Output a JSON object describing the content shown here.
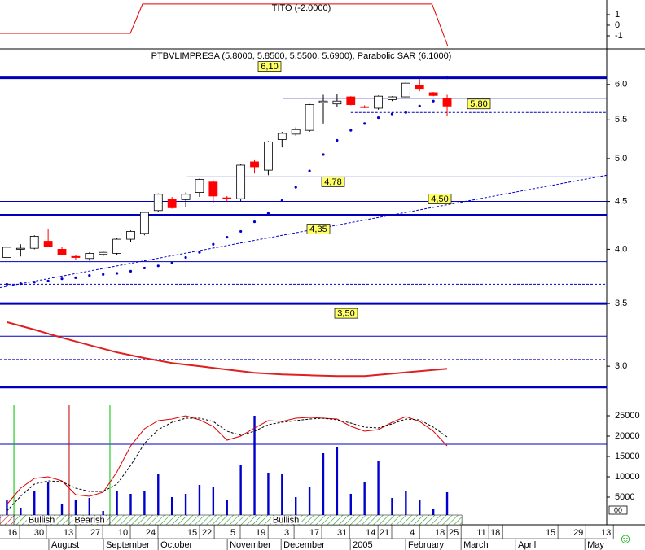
{
  "chart_data": [
    {
      "type": "line",
      "title": "TITO (-2.0000)",
      "x": [
        -0.5,
        8.97,
        9.86,
        30.9,
        32.06
      ],
      "series": [
        {
          "color": "#e00000",
          "values": [
            -0.77,
            -0.77,
            2.0,
            2.0,
            -2.0
          ]
        }
      ],
      "xlim": [
        -0.5,
        43.6
      ],
      "ylim": [
        -2.23,
        2.38
      ],
      "yticks": [
        1,
        0,
        -1
      ]
    },
    {
      "type": "candlestick",
      "title": "PTBVLIMPRESA (5.8000, 5.8500, 5.5500, 5.6900), Parabolic SAR (6.1000)",
      "x": [
        0,
        1,
        2,
        3,
        4,
        5,
        6,
        7,
        8,
        9,
        10,
        11,
        12,
        13,
        14,
        15,
        16,
        17,
        18,
        19,
        20,
        21,
        22,
        23,
        24,
        25,
        26,
        27,
        28,
        29,
        30,
        31,
        32
      ],
      "open": [
        3.92,
        4.0,
        4.01,
        4.08,
        4.0,
        3.93,
        3.91,
        3.95,
        3.96,
        4.1,
        4.16,
        4.4,
        4.52,
        4.52,
        4.6,
        4.72,
        4.54,
        4.53,
        4.96,
        4.86,
        5.24,
        5.31,
        5.36,
        5.74,
        5.72,
        5.82,
        5.68,
        5.66,
        5.78,
        5.82,
        5.99,
        5.88,
        5.8
      ],
      "high": [
        4.03,
        4.05,
        4.14,
        4.2,
        4.02,
        3.94,
        3.97,
        3.98,
        4.11,
        4.19,
        4.39,
        4.59,
        4.55,
        4.6,
        4.76,
        4.74,
        4.56,
        4.93,
        4.98,
        5.22,
        5.34,
        5.4,
        5.72,
        5.85,
        5.86,
        5.83,
        5.7,
        5.84,
        5.83,
        6.04,
        6.08,
        5.89,
        5.85
      ],
      "low": [
        3.88,
        3.93,
        4.0,
        4.02,
        3.94,
        3.9,
        3.89,
        3.93,
        3.94,
        4.07,
        4.14,
        4.38,
        4.42,
        4.44,
        4.55,
        4.48,
        4.5,
        4.5,
        4.82,
        4.8,
        5.14,
        5.29,
        5.34,
        5.45,
        5.68,
        5.7,
        5.66,
        5.64,
        5.76,
        5.8,
        5.9,
        5.83,
        5.55
      ],
      "close": [
        4.02,
        4.01,
        4.13,
        4.03,
        3.95,
        3.92,
        3.96,
        3.97,
        4.1,
        4.18,
        4.38,
        4.58,
        4.43,
        4.58,
        4.75,
        4.56,
        4.53,
        4.92,
        4.9,
        5.21,
        5.32,
        5.37,
        5.71,
        5.76,
        5.76,
        5.71,
        5.67,
        5.83,
        5.82,
        6.02,
        5.93,
        5.84,
        5.69
      ],
      "color_up": "#ffffff",
      "color_down": "#ff0000",
      "sar": {
        "color": "#0000cc",
        "values": [
          3.67,
          3.676,
          3.69,
          3.7,
          3.72,
          3.73,
          3.75,
          3.76,
          3.77,
          3.79,
          3.82,
          3.84,
          3.87,
          3.92,
          3.97,
          4.05,
          4.12,
          4.18,
          4.28,
          4.37,
          4.51,
          4.66,
          4.85,
          5.05,
          5.23,
          5.36,
          5.45,
          5.53,
          5.58,
          5.6,
          5.69,
          5.76,
          6.1
        ]
      },
      "average": {
        "color": "#dd2020",
        "x": [
          0,
          2,
          4,
          6,
          8,
          10,
          12,
          14,
          16,
          18,
          20,
          22,
          24,
          26,
          28,
          30,
          32
        ],
        "values": [
          3.344,
          3.283,
          3.218,
          3.16,
          3.104,
          3.061,
          3.024,
          3.0,
          2.976,
          2.952,
          2.94,
          2.934,
          2.928,
          2.928,
          2.946,
          2.964,
          2.982
        ]
      },
      "trendline": {
        "color": "#0000cc",
        "x": [
          -0.5,
          43.6
        ],
        "values": [
          3.64,
          4.8
        ]
      },
      "levels": [
        {
          "value": 6.1,
          "label": "6,10",
          "style": "thick"
        },
        {
          "value": 5.8,
          "label": "5,80",
          "style": "thin",
          "start": 20.1
        },
        {
          "value": 5.6,
          "style": "dotted",
          "start": 25.0
        },
        {
          "value": 4.78,
          "label": "4,78",
          "style": "thin",
          "start": 13.1
        },
        {
          "value": 4.5,
          "label": "4,50",
          "style": "thin"
        },
        {
          "value": 4.35,
          "label": "4,35",
          "style": "thick"
        },
        {
          "value": 3.88,
          "style": "thin"
        },
        {
          "value": 3.67,
          "style": "dotted"
        },
        {
          "value": 3.5,
          "label": "3,50",
          "style": "thick"
        },
        {
          "value": 3.23,
          "style": "thin"
        },
        {
          "value": 3.05,
          "style": "dotted"
        },
        {
          "value": 2.85,
          "style": "thick"
        }
      ],
      "log_scale": true,
      "xlim": [
        -0.5,
        43.6
      ],
      "ylim": [
        2.77,
        6.55
      ],
      "yticks": [
        {
          "value": 6,
          "label": "6.0"
        },
        5.5,
        {
          "value": 5,
          "label": "5.0"
        },
        4.5,
        {
          "value": 4,
          "label": "4.0"
        },
        3.5,
        {
          "value": 3,
          "label": "3.0"
        }
      ]
    },
    {
      "type": "bar",
      "color": "#0000cc",
      "x": [
        0,
        1,
        2,
        3,
        4,
        5,
        6,
        7,
        8,
        9,
        10,
        11,
        12,
        13,
        14,
        15,
        16,
        17,
        18,
        19,
        20,
        21,
        22,
        23,
        24,
        25,
        26,
        27,
        28,
        29,
        30,
        31,
        32
      ],
      "values": [
        4400,
        2400,
        6400,
        8600,
        3200,
        4200,
        4800,
        1600,
        6400,
        5800,
        6400,
        10600,
        5000,
        5800,
        8000,
        7400,
        4200,
        12800,
        25000,
        11000,
        10600,
        5000,
        7600,
        15800,
        17200,
        5800,
        8800,
        13800,
        4800,
        6600,
        4400,
        2000,
        6200
      ],
      "series": [
        {
          "color": "#e00000",
          "style": "solid",
          "values": [
            3200,
            7200,
            9600,
            10000,
            9000,
            5600,
            5200,
            6200,
            11200,
            17600,
            21800,
            23800,
            24200,
            25000,
            24000,
            22400,
            19000,
            20000,
            22000,
            23800,
            23600,
            24400,
            24600,
            24400,
            24200,
            22400,
            21200,
            21600,
            23400,
            24800,
            23600,
            21200,
            17600
          ]
        },
        {
          "color": "#000000",
          "style": "dashed",
          "values": [
            1600,
            5200,
            8200,
            9000,
            8800,
            7200,
            6400,
            6400,
            8200,
            12800,
            18200,
            21600,
            23400,
            24400,
            24400,
            23600,
            21200,
            20200,
            21200,
            22800,
            23400,
            23800,
            24200,
            24400,
            24000,
            23200,
            22200,
            22000,
            23000,
            24200,
            24000,
            22200,
            19800
          ]
        }
      ],
      "hline": 18000,
      "signals": [
        {
          "x": 0.51,
          "color": "#00c000"
        },
        {
          "x": 4.53,
          "color": "#c00000"
        },
        {
          "x": 7.49,
          "color": "#00c000"
        }
      ],
      "band": [
        {
          "start": -0.5,
          "end": 0.51,
          "color": "red"
        },
        {
          "start": 0.51,
          "end": 4.53,
          "color": "green",
          "label": "Bullish"
        },
        {
          "start": 4.53,
          "end": 7.49,
          "color": "green",
          "label": "Bearish"
        },
        {
          "start": 7.49,
          "end": 33.07,
          "color": "green",
          "label": "Bullish"
        }
      ],
      "xlim": [
        -0.5,
        43.6
      ],
      "ylim": [
        0,
        29200
      ],
      "yticks": [
        25000,
        20000,
        15000,
        10000,
        5000
      ],
      "xticks": [
        {
          "value": 0.39,
          "label": "16"
        },
        {
          "value": 2.34,
          "label": "30"
        },
        {
          "value": 4.47,
          "label": "13"
        },
        {
          "value": 6.43,
          "label": "27"
        },
        {
          "value": 8.44,
          "label": "10"
        },
        {
          "value": 10.45,
          "label": "24"
        },
        {
          "value": 13.47,
          "label": "15"
        },
        {
          "value": 14.54,
          "label": "22"
        },
        {
          "value": 16.43,
          "label": "5"
        },
        {
          "value": 18.45,
          "label": "19"
        },
        {
          "value": 20.34,
          "label": "3"
        },
        {
          "value": 22.35,
          "label": "17"
        },
        {
          "value": 24.37,
          "label": "31"
        },
        {
          "value": 26.44,
          "label": "14"
        },
        {
          "value": 27.44,
          "label": "21"
        },
        {
          "value": 29.46,
          "label": "4"
        },
        {
          "value": 31.47,
          "label": "18"
        },
        {
          "value": 32.48,
          "label": "25"
        },
        {
          "value": 34.49,
          "label": "11"
        },
        {
          "value": 35.5,
          "label": "18"
        },
        {
          "value": 39.52,
          "label": "15"
        },
        {
          "value": 41.54,
          "label": "29"
        },
        {
          "value": 43.55,
          "label": "13"
        }
      ],
      "month_ticks": [
        {
          "value": 3.05,
          "label": "August"
        },
        {
          "value": 7.02,
          "label": "September"
        },
        {
          "value": 10.99,
          "label": "October"
        },
        {
          "value": 16.02,
          "label": "November"
        },
        {
          "value": 19.93,
          "label": "December"
        },
        {
          "value": 24.96,
          "label": "2005"
        },
        {
          "value": 28.98,
          "label": "February"
        },
        {
          "value": 33.01,
          "label": "March"
        },
        {
          "value": 36.98,
          "label": "April"
        },
        {
          "value": 42.01,
          "label": "May"
        }
      ]
    }
  ],
  "extras": {
    "box_text": "00",
    "smiley": "☺"
  }
}
